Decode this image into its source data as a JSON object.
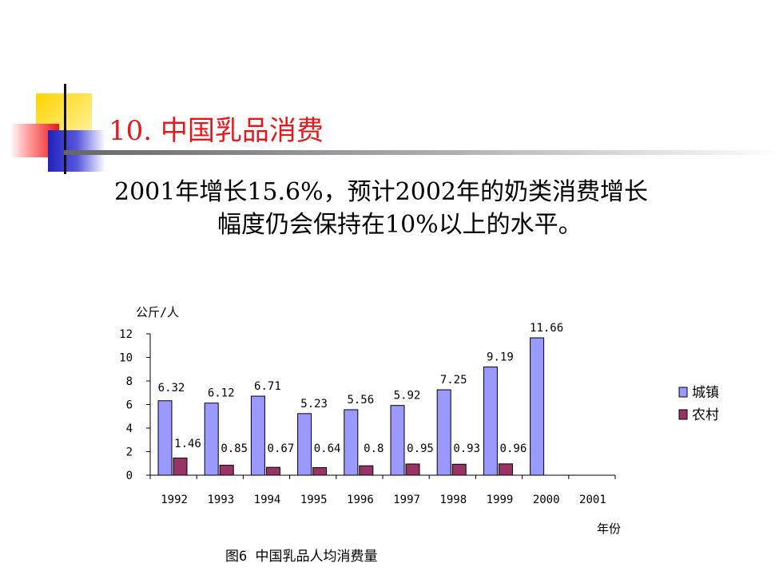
{
  "slide": {
    "title": "10. 中国乳品消费",
    "body_lines": [
      "2001年增长15.6%，预计2002年的奶类消费增长",
      "幅度仍会保持在10%以上的水平。"
    ]
  },
  "colors": {
    "title": "#e8171c",
    "urban": "#9999ff",
    "rural": "#993366"
  },
  "chart_data": {
    "type": "bar",
    "title": "图6 中国乳品人均消费量",
    "ylabel": "公斤/人",
    "xlabel": "年份",
    "categories": [
      "1992",
      "1993",
      "1994",
      "1995",
      "1996",
      "1997",
      "1998",
      "1999",
      "2000",
      "2001"
    ],
    "ylim": [
      0,
      12
    ],
    "yticks": [
      0,
      2,
      4,
      6,
      8,
      10,
      12
    ],
    "legend_position": "right",
    "series": [
      {
        "name": "城镇",
        "values": [
          6.32,
          6.12,
          6.71,
          5.23,
          5.56,
          5.92,
          7.25,
          9.19,
          11.66,
          null
        ],
        "labels": [
          "6.32",
          "6.12",
          "6.71",
          "5.23",
          "5.56",
          "5.92",
          "7.25",
          "9.19",
          "11.66",
          ""
        ]
      },
      {
        "name": "农村",
        "values": [
          1.46,
          0.85,
          0.67,
          0.64,
          0.8,
          0.95,
          0.93,
          0.96,
          null,
          null
        ],
        "labels": [
          "1.46",
          "0.85",
          "0.67",
          "0.64",
          "0.8",
          "0.95",
          "0.93",
          "0.96",
          "",
          ""
        ]
      }
    ]
  }
}
